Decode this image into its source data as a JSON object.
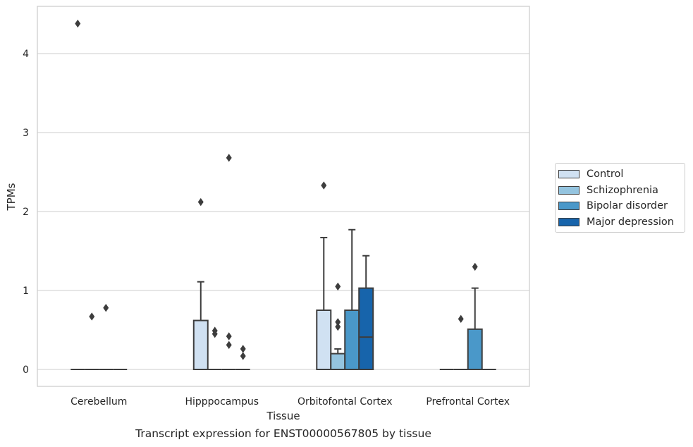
{
  "chart_data": {
    "type": "box",
    "xlabel": "Tissue",
    "ylabel": "TPMs",
    "caption": "Transcript expression for ENST00000567805 by tissue",
    "categories": [
      "Cerebellum",
      "Hipppocampus",
      "Orbitofontal Cortex",
      "Prefrontal Cortex"
    ],
    "y_ticks": [
      "0",
      "1",
      "2",
      "3",
      "4"
    ],
    "ylim": [
      -0.22,
      4.6
    ],
    "grid": true,
    "legend_position": "right",
    "series": [
      {
        "name": "Control",
        "color": "#d0e1f2",
        "boxes": [
          {
            "q1": 0,
            "median": 0,
            "q3": 0,
            "whisker_low": 0,
            "whisker_high": 0,
            "outliers": [
              4.38
            ]
          },
          {
            "q1": 0,
            "median": 0,
            "q3": 0.62,
            "whisker_low": 0,
            "whisker_high": 1.11,
            "outliers": [
              2.12
            ]
          },
          {
            "q1": 0,
            "median": 0,
            "q3": 0.75,
            "whisker_low": 0,
            "whisker_high": 1.67,
            "outliers": [
              2.33
            ]
          },
          {
            "q1": 0,
            "median": 0,
            "q3": 0,
            "whisker_low": 0,
            "whisker_high": 0,
            "outliers": []
          }
        ]
      },
      {
        "name": "Schizophrenia",
        "color": "#94c4df",
        "boxes": [
          {
            "q1": 0,
            "median": 0,
            "q3": 0,
            "whisker_low": 0,
            "whisker_high": 0,
            "outliers": [
              0.67
            ]
          },
          {
            "q1": 0,
            "median": 0,
            "q3": 0,
            "whisker_low": 0,
            "whisker_high": 0,
            "outliers": [
              0.49,
              0.45
            ]
          },
          {
            "q1": 0,
            "median": 0,
            "q3": 0.2,
            "whisker_low": 0,
            "whisker_high": 0.26,
            "outliers": [
              1.05,
              0.6,
              0.54
            ]
          },
          {
            "q1": 0,
            "median": 0,
            "q3": 0,
            "whisker_low": 0,
            "whisker_high": 0,
            "outliers": [
              0.64
            ]
          }
        ]
      },
      {
        "name": "Bipolar disorder",
        "color": "#4a98c9",
        "boxes": [
          {
            "q1": 0,
            "median": 0,
            "q3": 0,
            "whisker_low": 0,
            "whisker_high": 0,
            "outliers": [
              0.78
            ]
          },
          {
            "q1": 0,
            "median": 0,
            "q3": 0,
            "whisker_low": 0,
            "whisker_high": 0,
            "outliers": [
              2.68,
              0.42,
              0.31
            ]
          },
          {
            "q1": 0,
            "median": 0,
            "q3": 0.75,
            "whisker_low": 0,
            "whisker_high": 1.77,
            "outliers": []
          },
          {
            "q1": 0,
            "median": 0,
            "q3": 0.51,
            "whisker_low": 0,
            "whisker_high": 1.03,
            "outliers": [
              1.3
            ]
          }
        ]
      },
      {
        "name": "Major depression",
        "color": "#1764ab",
        "boxes": [
          {
            "q1": 0,
            "median": 0,
            "q3": 0,
            "whisker_low": 0,
            "whisker_high": 0,
            "outliers": []
          },
          {
            "q1": 0,
            "median": 0,
            "q3": 0,
            "whisker_low": 0,
            "whisker_high": 0,
            "outliers": [
              0.26,
              0.17
            ]
          },
          {
            "q1": 0,
            "median": 0.41,
            "q3": 1.03,
            "whisker_low": 0,
            "whisker_high": 1.44,
            "outliers": []
          },
          {
            "q1": 0,
            "median": 0,
            "q3": 0,
            "whisker_low": 0,
            "whisker_high": 0,
            "outliers": []
          }
        ]
      }
    ]
  }
}
